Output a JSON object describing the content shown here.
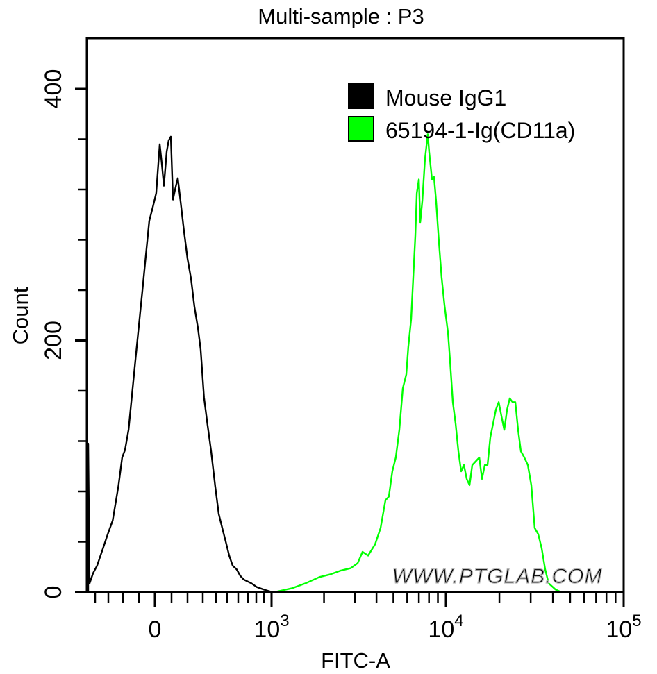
{
  "chart_data": {
    "type": "line",
    "title": "Multi-sample : P3",
    "xlabel": "FITC-A",
    "ylabel": "Count",
    "x_scale": "biexponential",
    "xlim": [
      -460,
      100000
    ],
    "ylim": [
      0,
      400
    ],
    "grid": false,
    "legend_placement": "top-right",
    "x_major_ticks": [
      {
        "value": 0,
        "base": "0",
        "exp": ""
      },
      {
        "value": 1000,
        "base": "10",
        "exp": "3"
      },
      {
        "value": 10000,
        "base": "10",
        "exp": "4"
      },
      {
        "value": 100000,
        "base": "10",
        "exp": "5"
      }
    ],
    "x_minor_ticks": [
      -400,
      -300,
      -200,
      -100,
      100,
      200,
      300,
      400,
      500,
      600,
      700,
      800,
      900,
      2000,
      3000,
      4000,
      5000,
      6000,
      7000,
      8000,
      9000,
      20000,
      30000,
      40000,
      50000,
      60000,
      70000,
      80000,
      90000
    ],
    "y_major_ticks": [
      0,
      200,
      400
    ],
    "y_minor_ticks": [
      40,
      80,
      120,
      160,
      240,
      280,
      320,
      360
    ],
    "series": [
      {
        "name": "Mouse IgG1",
        "color": "#000000",
        "x": [
          -450,
          -450,
          -440,
          -415,
          -385,
          -340,
          -305,
          -270,
          -230,
          -205,
          -187,
          -165,
          -143,
          -122,
          -100,
          -78,
          -57,
          -35,
          -13,
          8,
          29,
          42,
          54,
          71,
          83,
          96,
          109,
          122,
          139,
          157,
          178,
          200,
          223,
          245,
          268,
          286,
          309,
          336,
          363,
          394,
          425,
          456,
          488,
          519,
          550,
          586,
          621,
          657,
          742,
          808,
          900,
          1010
        ],
        "y": [
          0,
          118,
          7,
          15,
          21,
          35,
          46,
          57,
          85,
          107,
          113,
          129,
          157,
          184,
          212,
          240,
          267,
          295,
          306,
          317,
          356,
          340,
          323,
          350,
          359,
          362,
          312,
          320,
          329,
          310,
          287,
          265,
          249,
          227,
          210,
          193,
          155,
          133,
          112,
          84,
          62,
          51,
          40,
          29,
          21,
          18,
          13,
          10,
          7,
          4,
          2,
          0
        ]
      },
      {
        "name": "65194-1-Ig(CD11a)",
        "color": "#00ff00",
        "x": [
          1037,
          1305,
          1567,
          1884,
          2163,
          2479,
          2845,
          3119,
          3326,
          3580,
          3926,
          4220,
          4500,
          4710,
          4930,
          5160,
          5410,
          5660,
          5930,
          6090,
          6320,
          6500,
          6680,
          6810,
          7000,
          7130,
          7330,
          7590,
          7870,
          8020,
          8320,
          8550,
          8790,
          9120,
          9460,
          9820,
          10280,
          10550,
          10940,
          11340,
          11760,
          12190,
          12640,
          13100,
          13590,
          14070,
          14730,
          15410,
          15970,
          16560,
          17150,
          17780,
          18440,
          19110,
          19820,
          20540,
          21300,
          22080,
          22880,
          23720,
          24590,
          25480,
          26420,
          27620,
          28890,
          30220,
          31600,
          33070,
          34580,
          36190,
          37850,
          41430,
          44500
        ],
        "y": [
          0,
          3,
          7,
          12,
          14,
          17,
          19,
          23,
          32,
          29,
          38,
          51,
          73,
          76,
          96,
          107,
          129,
          162,
          173,
          195,
          217,
          250,
          283,
          317,
          328,
          294,
          311,
          344,
          364,
          350,
          328,
          330,
          311,
          278,
          250,
          228,
          206,
          184,
          151,
          134,
          112,
          96,
          101,
          90,
          85,
          101,
          104,
          107,
          90,
          101,
          101,
          123,
          134,
          145,
          151,
          140,
          129,
          145,
          154,
          151,
          151,
          129,
          112,
          107,
          101,
          85,
          51,
          46,
          35,
          18,
          7,
          2,
          0
        ]
      }
    ]
  },
  "watermark": "WWW.PTGLAB.COM"
}
